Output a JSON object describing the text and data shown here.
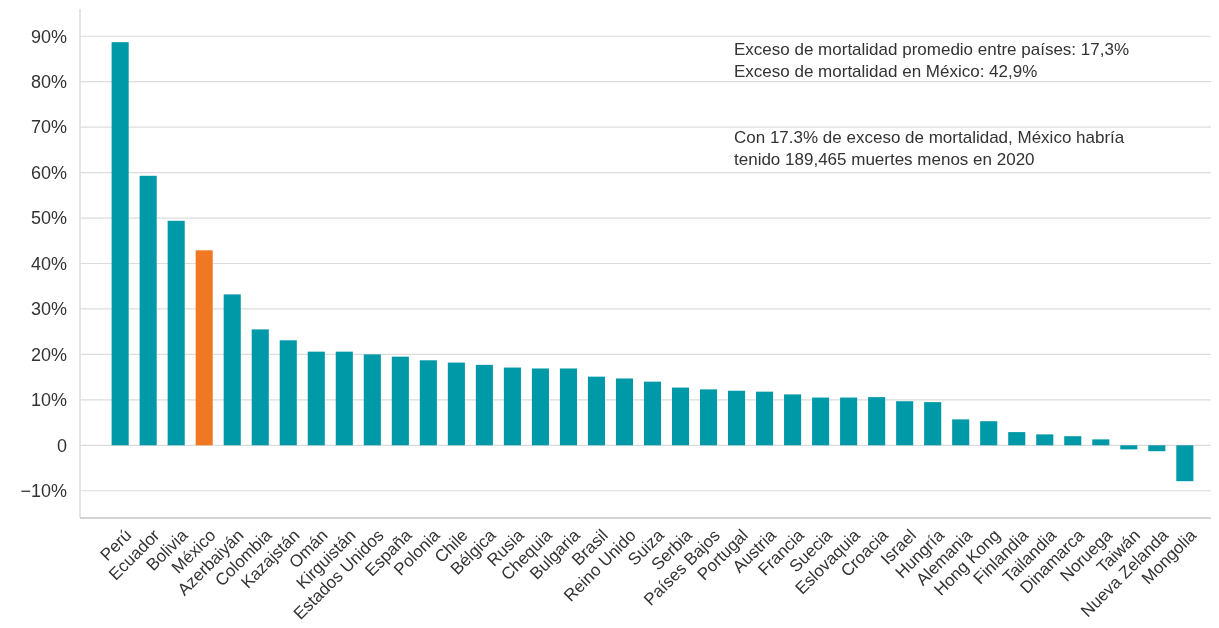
{
  "chart_data": {
    "type": "bar",
    "categories": [
      "Perú",
      "Ecuador",
      "Bolivia",
      "México",
      "Azerbaiyán",
      "Colombia",
      "Kazajstán",
      "Omán",
      "Kirguistán",
      "Estados Unidos",
      "España",
      "Polonia",
      "Chile",
      "Bélgica",
      "Rusia",
      "Chequia",
      "Bulgaria",
      "Brasil",
      "Reino Unido",
      "Suiza",
      "Serbia",
      "Países Bajos",
      "Portugal",
      "Austria",
      "Francia",
      "Suecia",
      "Eslovaquia",
      "Croacia",
      "Israel",
      "Hungría",
      "Alemania",
      "Hong Kong",
      "Finlandia",
      "Tailandia",
      "Dinamarca",
      "Noruega",
      "Taiwán",
      "Nueva Zelanda",
      "Mongolia"
    ],
    "values": [
      88.7,
      59.3,
      49.4,
      42.9,
      33.2,
      25.5,
      23.1,
      20.6,
      20.6,
      20.0,
      19.5,
      18.7,
      18.2,
      17.7,
      17.1,
      16.9,
      16.9,
      15.1,
      14.7,
      14.0,
      12.7,
      12.3,
      12.0,
      11.8,
      11.2,
      10.5,
      10.5,
      10.6,
      9.7,
      9.5,
      5.7,
      5.3,
      2.9,
      2.4,
      2.0,
      1.3,
      -0.9,
      -1.3,
      -7.9
    ],
    "colors": [
      "#0099a8",
      "#0099a8",
      "#0099a8",
      "#f07823",
      "#0099a8",
      "#0099a8",
      "#0099a8",
      "#0099a8",
      "#0099a8",
      "#0099a8",
      "#0099a8",
      "#0099a8",
      "#0099a8",
      "#0099a8",
      "#0099a8",
      "#0099a8",
      "#0099a8",
      "#0099a8",
      "#0099a8",
      "#0099a8",
      "#0099a8",
      "#0099a8",
      "#0099a8",
      "#0099a8",
      "#0099a8",
      "#0099a8",
      "#0099a8",
      "#0099a8",
      "#0099a8",
      "#0099a8",
      "#0099a8",
      "#0099a8",
      "#0099a8",
      "#0099a8",
      "#0099a8",
      "#0099a8",
      "#0099a8",
      "#0099a8",
      "#0099a8"
    ],
    "ylim": [
      -16,
      96
    ],
    "yticks": [
      {
        "value": -10,
        "label": "−10%"
      },
      {
        "value": 0,
        "label": "0"
      },
      {
        "value": 10,
        "label": "10%"
      },
      {
        "value": 20,
        "label": "20%"
      },
      {
        "value": 30,
        "label": "30%"
      },
      {
        "value": 40,
        "label": "40%"
      },
      {
        "value": 50,
        "label": "50%"
      },
      {
        "value": 60,
        "label": "60%"
      },
      {
        "value": 70,
        "label": "70%"
      },
      {
        "value": 80,
        "label": "80%"
      },
      {
        "value": 90,
        "label": "90%"
      }
    ],
    "grid": "y",
    "annotations": [
      "Exceso de mortalidad promedio entre países: 17,3%\nExceso de mortalidad en México: 42,9%",
      "Con 17.3% de exceso de mortalidad, México habría\ntenido 189,465 muertes menos en 2020"
    ]
  }
}
